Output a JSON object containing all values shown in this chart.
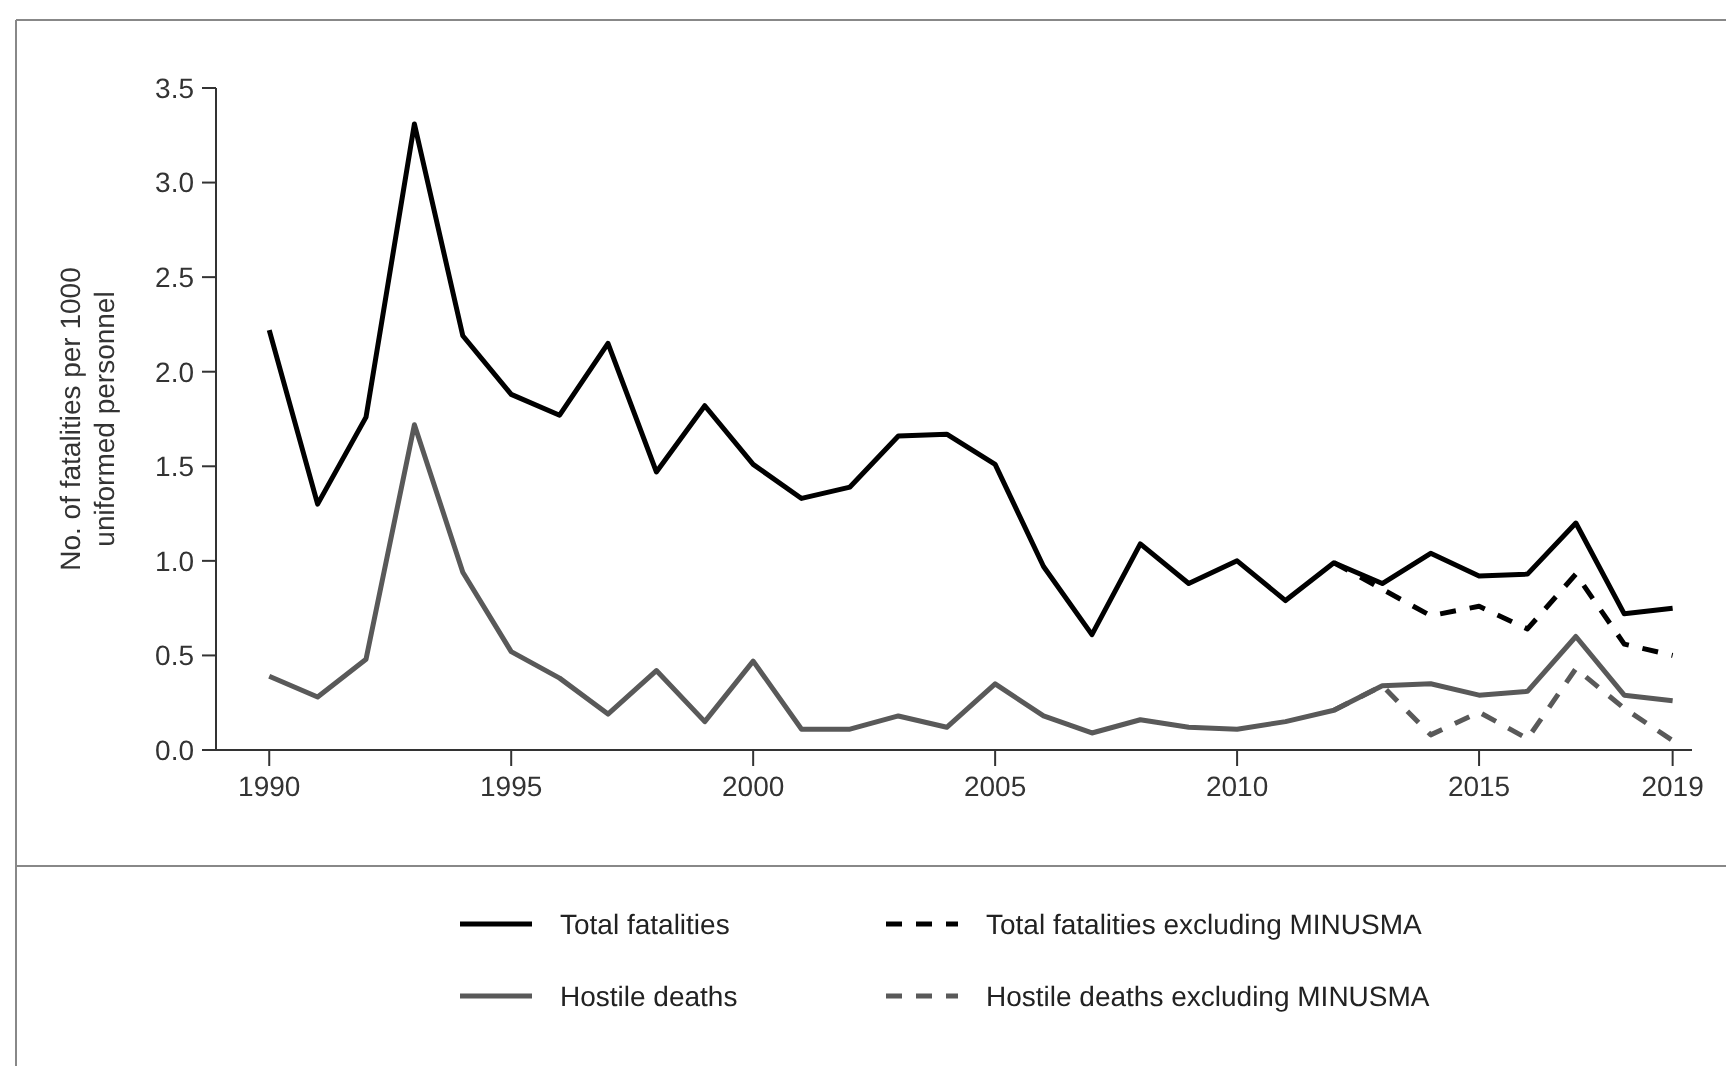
{
  "chart_data": {
    "type": "line",
    "ylabel": "No. of fatalities per 1000 uniformed personnel",
    "x": [
      1990,
      1991,
      1992,
      1993,
      1994,
      1995,
      1996,
      1997,
      1998,
      1999,
      2000,
      2001,
      2002,
      2003,
      2004,
      2005,
      2006,
      2007,
      2008,
      2009,
      2010,
      2011,
      2012,
      2013,
      2014,
      2015,
      2016,
      2017,
      2018,
      2019
    ],
    "series": [
      {
        "name": "Total fatalities",
        "color": "#000000",
        "line_style": "solid",
        "values": [
          2.22,
          1.3,
          1.76,
          3.31,
          2.19,
          1.88,
          1.77,
          2.15,
          1.47,
          1.82,
          1.51,
          1.33,
          1.39,
          1.66,
          1.67,
          1.51,
          0.97,
          0.61,
          1.09,
          0.88,
          1.0,
          0.79,
          0.99,
          0.88,
          1.04,
          0.92,
          0.93,
          1.2,
          0.72,
          0.75
        ]
      },
      {
        "name": "Total fatalities excluding MINUSMA",
        "color": "#000000",
        "line_style": "dashed",
        "x": [
          2012,
          2013,
          2014,
          2015,
          2016,
          2017,
          2018,
          2019
        ],
        "values": [
          0.99,
          0.85,
          0.71,
          0.76,
          0.64,
          0.93,
          0.56,
          0.5
        ]
      },
      {
        "name": "Hostile deaths",
        "color": "#595959",
        "line_style": "solid",
        "values": [
          0.39,
          0.28,
          0.48,
          1.72,
          0.94,
          0.52,
          0.38,
          0.19,
          0.42,
          0.15,
          0.47,
          0.11,
          0.11,
          0.18,
          0.12,
          0.35,
          0.18,
          0.09,
          0.16,
          0.12,
          0.11,
          0.15,
          0.21,
          0.34,
          0.35,
          0.29,
          0.31,
          0.6,
          0.29,
          0.26
        ]
      },
      {
        "name": "Hostile deaths excluding MINUSMA",
        "color": "#595959",
        "line_style": "dashed",
        "x": [
          2012,
          2013,
          2014,
          2015,
          2016,
          2017,
          2018,
          2019
        ],
        "values": [
          0.21,
          0.34,
          0.08,
          0.2,
          0.06,
          0.43,
          0.22,
          0.05
        ]
      }
    ],
    "xlim": [
      1988.9,
      2019.4
    ],
    "xticks": [
      1990,
      1995,
      2000,
      2005,
      2010,
      2015,
      2019
    ],
    "ylim": [
      0,
      3.5
    ],
    "yticks": [
      {
        "value": 0,
        "label": "0.0"
      },
      {
        "value": 0.5,
        "label": "0.5"
      },
      {
        "value": 1,
        "label": "1.0"
      },
      {
        "value": 1.5,
        "label": "1.5"
      },
      {
        "value": 2,
        "label": "2.0"
      },
      {
        "value": 2.5,
        "label": "2.5"
      },
      {
        "value": 3,
        "label": "3.0"
      },
      {
        "value": 3.5,
        "label": "3.5"
      }
    ],
    "grid": false,
    "legend": "bottom",
    "marker": "none"
  }
}
